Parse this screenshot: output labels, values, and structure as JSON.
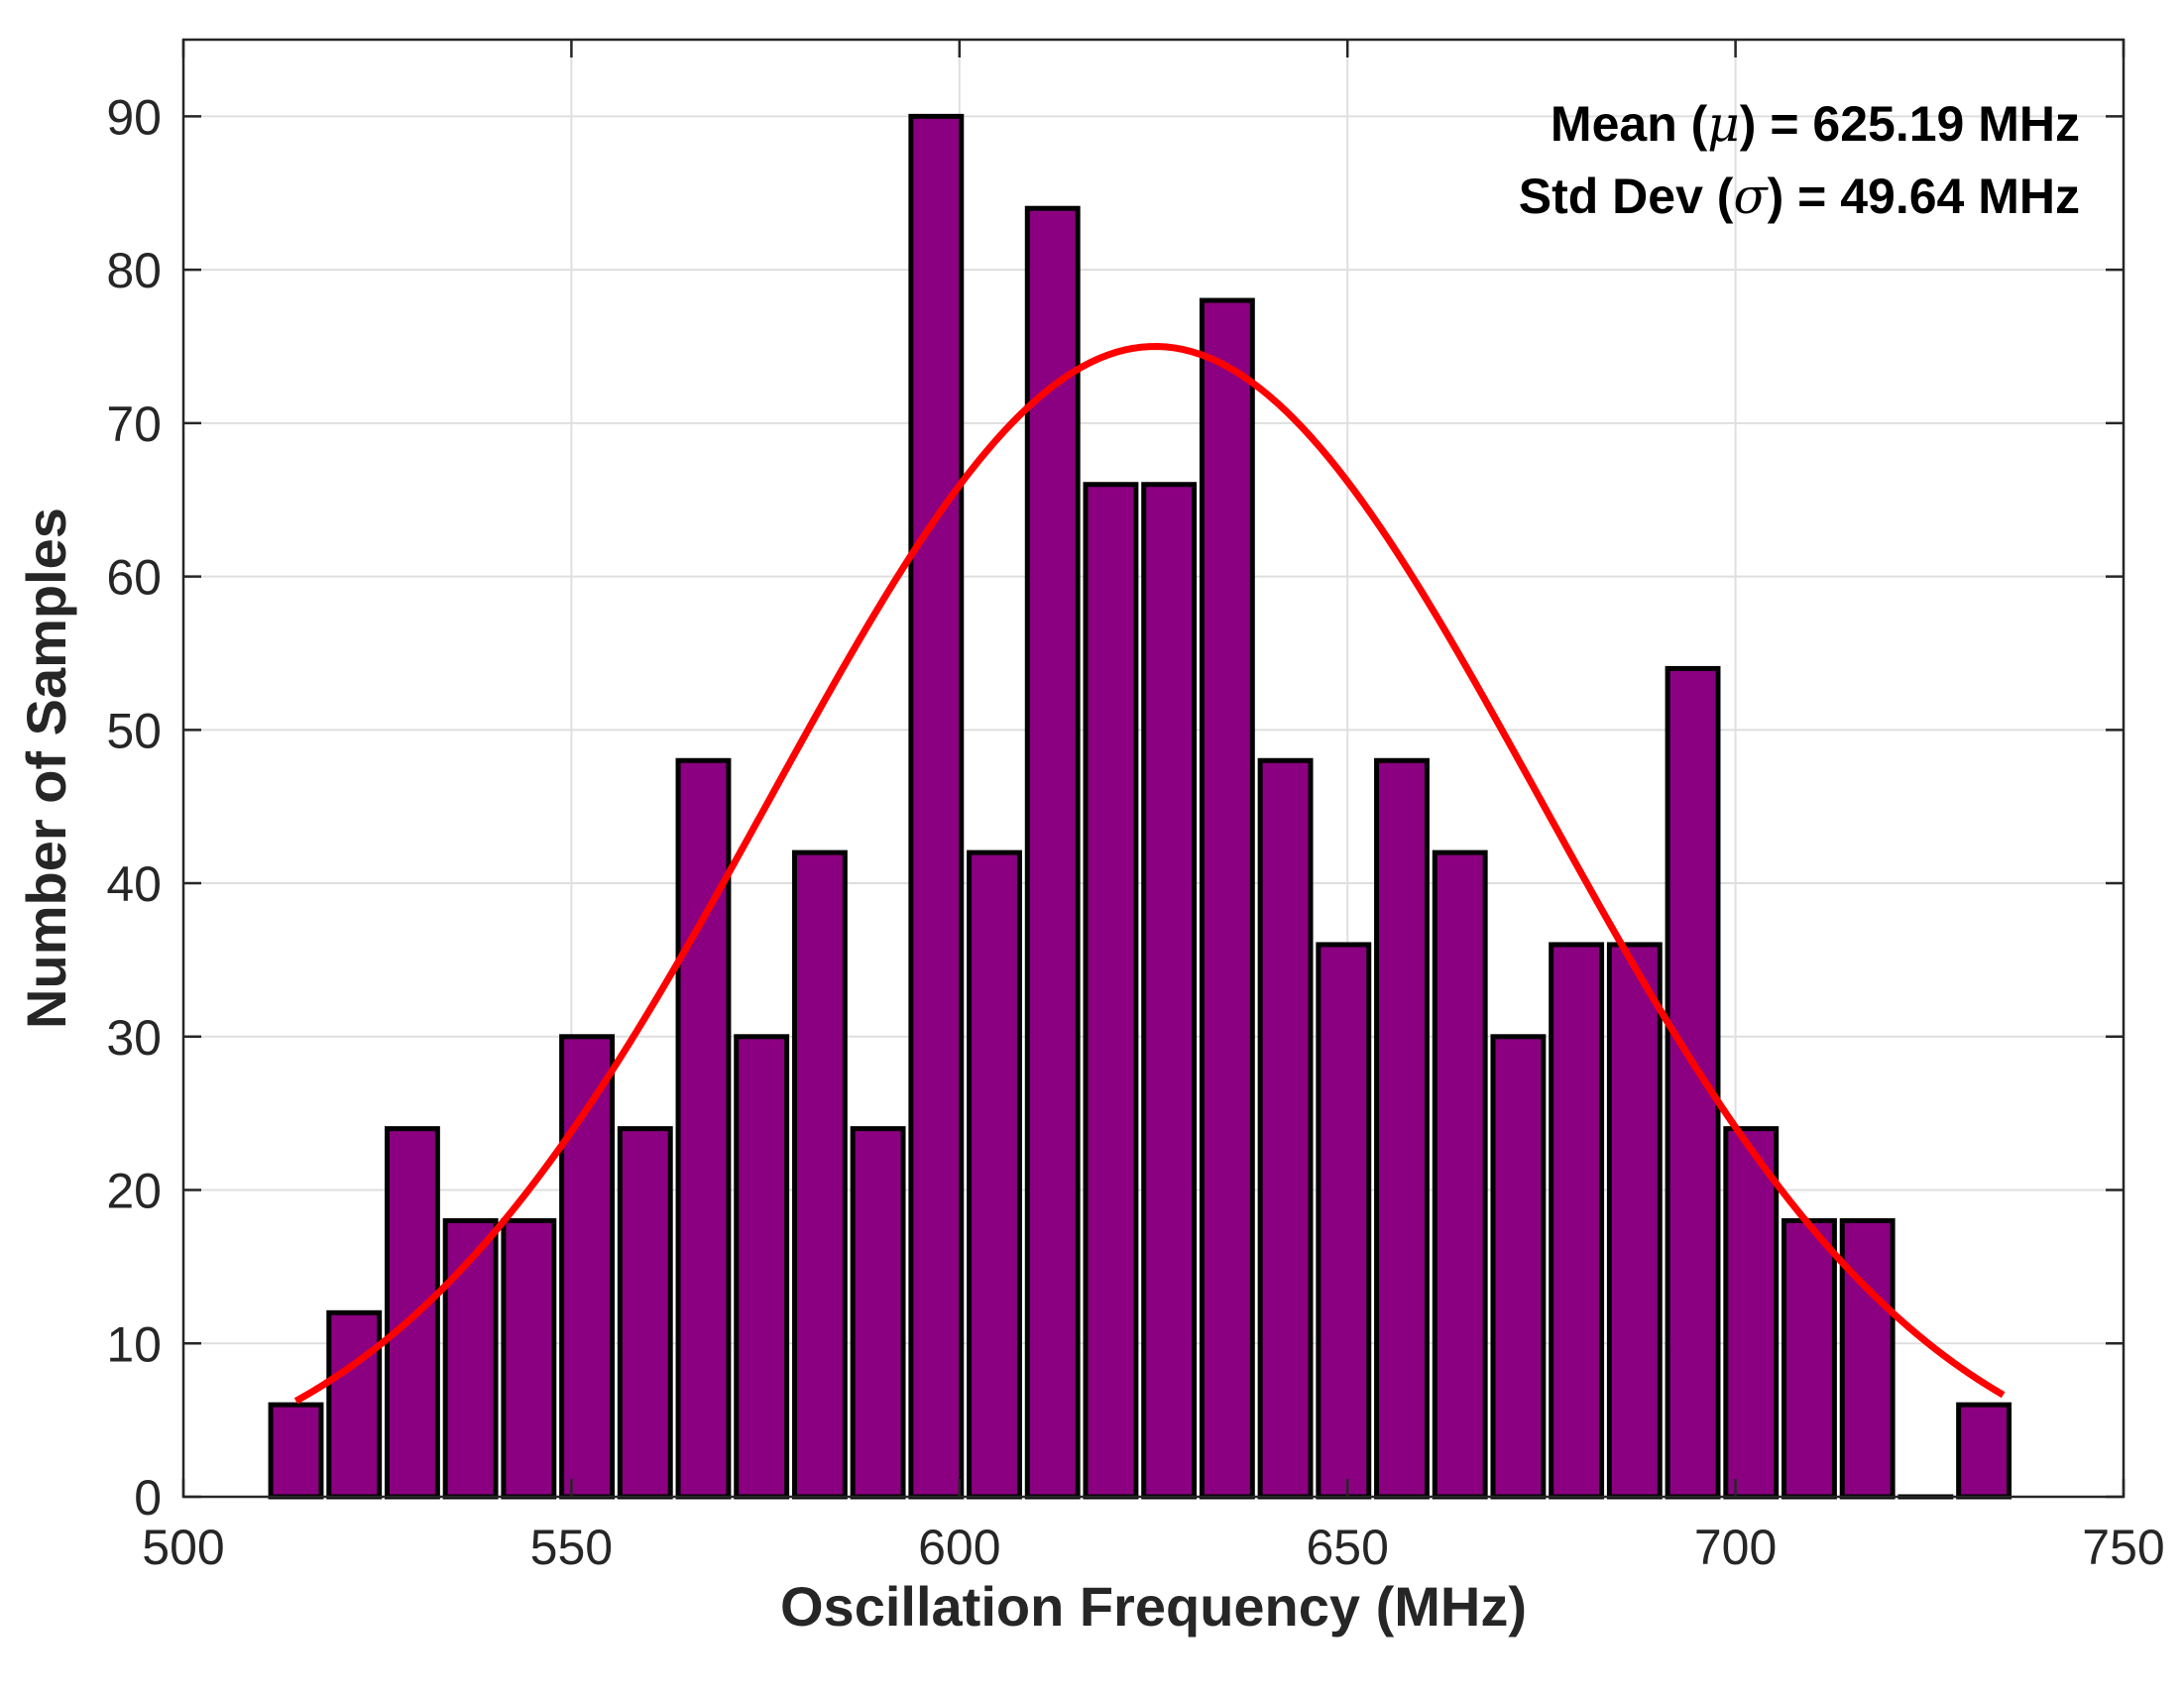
{
  "chart_data": {
    "type": "bar",
    "title": "",
    "xlabel": "Oscillation Frequency (MHz)",
    "ylabel": "Number of Samples",
    "xlim": [
      500,
      750
    ],
    "ylim": [
      0,
      95
    ],
    "xticks": [
      500,
      550,
      600,
      650,
      700,
      750
    ],
    "yticks": [
      0,
      10,
      20,
      30,
      40,
      50,
      60,
      70,
      80,
      90
    ],
    "grid": true,
    "bar_width": 6.5,
    "bar_color": "#8B0080",
    "bar_edge_color": "#000000",
    "bins": [
      {
        "x": 514.5,
        "count": 6
      },
      {
        "x": 522.0,
        "count": 12
      },
      {
        "x": 529.5,
        "count": 24
      },
      {
        "x": 537.0,
        "count": 18
      },
      {
        "x": 544.5,
        "count": 18
      },
      {
        "x": 552.0,
        "count": 30
      },
      {
        "x": 559.5,
        "count": 24
      },
      {
        "x": 567.0,
        "count": 48
      },
      {
        "x": 574.5,
        "count": 30
      },
      {
        "x": 582.0,
        "count": 42
      },
      {
        "x": 589.5,
        "count": 24
      },
      {
        "x": 597.0,
        "count": 90
      },
      {
        "x": 604.5,
        "count": 42
      },
      {
        "x": 612.0,
        "count": 84
      },
      {
        "x": 619.5,
        "count": 66
      },
      {
        "x": 627.0,
        "count": 66
      },
      {
        "x": 634.5,
        "count": 78
      },
      {
        "x": 642.0,
        "count": 48
      },
      {
        "x": 649.5,
        "count": 36
      },
      {
        "x": 657.0,
        "count": 48
      },
      {
        "x": 664.5,
        "count": 42
      },
      {
        "x": 672.0,
        "count": 30
      },
      {
        "x": 679.5,
        "count": 36
      },
      {
        "x": 687.0,
        "count": 36
      },
      {
        "x": 694.5,
        "count": 54
      },
      {
        "x": 702.0,
        "count": 24
      },
      {
        "x": 709.5,
        "count": 18
      },
      {
        "x": 717.0,
        "count": 18
      },
      {
        "x": 724.5,
        "count": 0
      },
      {
        "x": 732.0,
        "count": 6
      }
    ],
    "fit": {
      "type": "normal",
      "mean": 625.19,
      "std": 49.64,
      "peak": 75,
      "x_range": [
        514.5,
        734.5
      ],
      "color": "#FF0000"
    },
    "annotations": {
      "mean_prefix": "Mean (",
      "mean_symbol": "μ",
      "mean_suffix": ") = 625.19 MHz",
      "std_prefix": "Std Dev (",
      "std_symbol": "σ",
      "std_suffix": ") = 49.64 MHz"
    }
  }
}
